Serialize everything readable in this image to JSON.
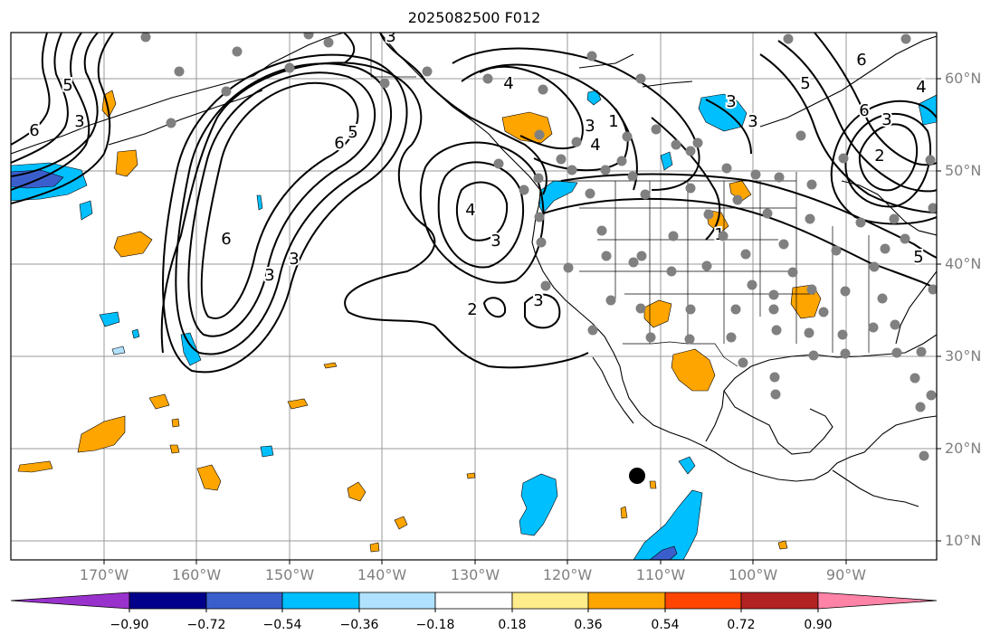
{
  "title": "2025082500 F012",
  "lat_labels": [
    "60°N",
    "50°N",
    "40°N",
    "30°N",
    "20°N",
    "10°N"
  ],
  "lon_labels": [
    "170°W",
    "160°W",
    "150°W",
    "140°W",
    "130°W",
    "120°W",
    "110°W",
    "100°W",
    "90°W"
  ],
  "colorbar": {
    "tick_labels": [
      "−0.90",
      "−0.72",
      "−0.54",
      "−0.36",
      "−0.18",
      "0.18",
      "0.36",
      "0.54",
      "0.72",
      "0.90"
    ],
    "colors": [
      "#9932cc",
      "#00008b",
      "#3a5fcd",
      "#00bfff",
      "#b0e2ff",
      "#ffffff",
      "#ffec8b",
      "#ffa500",
      "#ff4500",
      "#b22222",
      "#ff83a6"
    ]
  },
  "contour_labels": [
    "6",
    "5",
    "3",
    "6",
    "5",
    "6",
    "3",
    "3",
    "4",
    "3",
    "2",
    "3",
    "4",
    "3",
    "4",
    "3",
    "1",
    "5",
    "6",
    "6",
    "3",
    "2",
    "3",
    "5",
    "4",
    "1",
    "3"
  ],
  "land_color": "#000000",
  "station_color": "#808080"
}
